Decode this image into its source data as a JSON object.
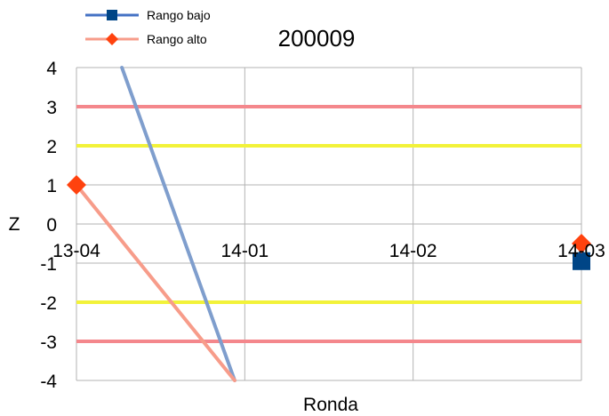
{
  "chart_data": {
    "type": "line",
    "title": "200009",
    "xlabel": "Ronda",
    "ylabel": "Z",
    "categories": [
      "13-04",
      "14-01",
      "14-02",
      "14-03"
    ],
    "ylim": [
      -4,
      4
    ],
    "yticks": [
      4,
      3,
      2,
      1,
      0,
      -1,
      -2,
      -3,
      -4
    ],
    "grid": true,
    "legend_position": "top-left",
    "reference_lines": [
      {
        "y": 3,
        "color": "#f4878c"
      },
      {
        "y": 2,
        "color": "#f2f23a"
      },
      {
        "y": -2,
        "color": "#f2f23a"
      },
      {
        "y": -3,
        "color": "#f4878c"
      }
    ],
    "series": [
      {
        "name": "Rango bajo",
        "color": "#4472c4",
        "line_color": "#7f9ecd",
        "marker": "square",
        "points": [
          {
            "x": 0.27,
            "y": 4
          },
          {
            "x": 0.94,
            "y": -4
          },
          {
            "x": 3,
            "y": -0.95
          }
        ],
        "segments": [
          [
            0,
            1
          ]
        ],
        "marker_indices": [
          2
        ]
      },
      {
        "name": "Rango alto",
        "color": "#ff420e",
        "line_color": "#f79c8a",
        "marker": "diamond",
        "points": [
          {
            "x": 0,
            "y": 1
          },
          {
            "x": 0.94,
            "y": -4
          },
          {
            "x": 3,
            "y": -0.5
          }
        ],
        "segments": [
          [
            0,
            1
          ]
        ],
        "marker_indices": [
          0,
          2
        ]
      }
    ]
  }
}
